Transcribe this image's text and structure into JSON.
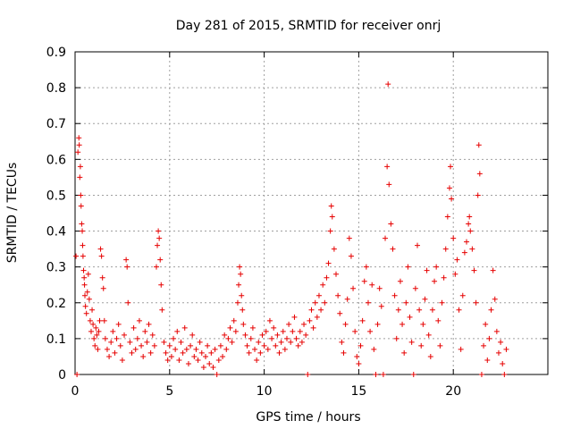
{
  "chart_data": {
    "type": "scatter",
    "title": "Day 281 of 2015, SRMTID for receiver onrj",
    "xlabel": "GPS time / hours",
    "ylabel": "SRMTID / TECUs",
    "xlim": [
      0,
      25
    ],
    "ylim": [
      0,
      0.9
    ],
    "xticks": [
      0,
      5,
      10,
      15,
      20
    ],
    "yticks": [
      0,
      0.1,
      0.2,
      0.3,
      0.4,
      0.5,
      0.6,
      0.7,
      0.8,
      0.9
    ],
    "xtick_labels": [
      "0",
      "5",
      "10",
      "15",
      "20"
    ],
    "ytick_labels": [
      "0",
      "0.1",
      "0.2",
      "0.3",
      "0.4",
      "0.5",
      "0.6",
      "0.7",
      "0.8",
      "0.9"
    ],
    "grid": true,
    "marker": "+",
    "color": "#e60000",
    "series": [
      {
        "name": "SRMTID",
        "points": [
          [
            0.05,
            0.33
          ],
          [
            0.1,
            0.0
          ],
          [
            0.15,
            0.62
          ],
          [
            0.2,
            0.66
          ],
          [
            0.22,
            0.64
          ],
          [
            0.25,
            0.55
          ],
          [
            0.28,
            0.58
          ],
          [
            0.3,
            0.5
          ],
          [
            0.32,
            0.47
          ],
          [
            0.35,
            0.42
          ],
          [
            0.38,
            0.4
          ],
          [
            0.4,
            0.36
          ],
          [
            0.42,
            0.33
          ],
          [
            0.45,
            0.29
          ],
          [
            0.48,
            0.27
          ],
          [
            0.5,
            0.25
          ],
          [
            0.52,
            0.22
          ],
          [
            0.55,
            0.19
          ],
          [
            0.6,
            0.17
          ],
          [
            0.65,
            0.23
          ],
          [
            0.7,
            0.28
          ],
          [
            0.75,
            0.21
          ],
          [
            0.8,
            0.15
          ],
          [
            0.85,
            0.12
          ],
          [
            0.9,
            0.18
          ],
          [
            0.95,
            0.14
          ],
          [
            1.0,
            0.1
          ],
          [
            1.05,
            0.08
          ],
          [
            1.1,
            0.13
          ],
          [
            1.15,
            0.11
          ],
          [
            1.2,
            0.07
          ],
          [
            1.25,
            0.12
          ],
          [
            1.3,
            0.15
          ],
          [
            1.35,
            0.35
          ],
          [
            1.4,
            0.33
          ],
          [
            1.45,
            0.27
          ],
          [
            1.5,
            0.24
          ],
          [
            1.55,
            0.15
          ],
          [
            1.6,
            0.1
          ],
          [
            1.7,
            0.07
          ],
          [
            1.8,
            0.05
          ],
          [
            1.9,
            0.09
          ],
          [
            2.0,
            0.12
          ],
          [
            2.1,
            0.06
          ],
          [
            2.2,
            0.1
          ],
          [
            2.3,
            0.14
          ],
          [
            2.4,
            0.08
          ],
          [
            2.5,
            0.04
          ],
          [
            2.6,
            0.11
          ],
          [
            2.7,
            0.32
          ],
          [
            2.75,
            0.3
          ],
          [
            2.8,
            0.2
          ],
          [
            2.9,
            0.09
          ],
          [
            3.0,
            0.06
          ],
          [
            3.1,
            0.13
          ],
          [
            3.2,
            0.07
          ],
          [
            3.3,
            0.1
          ],
          [
            3.4,
            0.15
          ],
          [
            3.5,
            0.08
          ],
          [
            3.6,
            0.05
          ],
          [
            3.7,
            0.12
          ],
          [
            3.8,
            0.09
          ],
          [
            3.9,
            0.14
          ],
          [
            4.0,
            0.06
          ],
          [
            4.1,
            0.11
          ],
          [
            4.2,
            0.08
          ],
          [
            4.3,
            0.3
          ],
          [
            4.35,
            0.36
          ],
          [
            4.4,
            0.4
          ],
          [
            4.45,
            0.38
          ],
          [
            4.5,
            0.32
          ],
          [
            4.55,
            0.25
          ],
          [
            4.6,
            0.18
          ],
          [
            4.7,
            0.09
          ],
          [
            4.8,
            0.06
          ],
          [
            4.9,
            0.04
          ],
          [
            5.0,
            0.08
          ],
          [
            5.1,
            0.05
          ],
          [
            5.2,
            0.1
          ],
          [
            5.3,
            0.07
          ],
          [
            5.4,
            0.12
          ],
          [
            5.5,
            0.04
          ],
          [
            5.6,
            0.09
          ],
          [
            5.7,
            0.06
          ],
          [
            5.8,
            0.13
          ],
          [
            5.9,
            0.07
          ],
          [
            6.0,
            0.03
          ],
          [
            6.1,
            0.08
          ],
          [
            6.2,
            0.11
          ],
          [
            6.3,
            0.05
          ],
          [
            6.4,
            0.07
          ],
          [
            6.5,
            0.04
          ],
          [
            6.6,
            0.09
          ],
          [
            6.7,
            0.06
          ],
          [
            6.8,
            0.02
          ],
          [
            6.9,
            0.05
          ],
          [
            7.0,
            0.08
          ],
          [
            7.1,
            0.03
          ],
          [
            7.2,
            0.06
          ],
          [
            7.3,
            0.02
          ],
          [
            7.4,
            0.07
          ],
          [
            7.5,
            0.0
          ],
          [
            7.6,
            0.04
          ],
          [
            7.7,
            0.08
          ],
          [
            7.8,
            0.05
          ],
          [
            7.9,
            0.11
          ],
          [
            8.0,
            0.07
          ],
          [
            8.1,
            0.1
          ],
          [
            8.2,
            0.13
          ],
          [
            8.3,
            0.09
          ],
          [
            8.4,
            0.15
          ],
          [
            8.5,
            0.12
          ],
          [
            8.6,
            0.2
          ],
          [
            8.65,
            0.25
          ],
          [
            8.7,
            0.3
          ],
          [
            8.75,
            0.28
          ],
          [
            8.8,
            0.22
          ],
          [
            8.85,
            0.18
          ],
          [
            8.9,
            0.14
          ],
          [
            9.0,
            0.11
          ],
          [
            9.1,
            0.08
          ],
          [
            9.2,
            0.06
          ],
          [
            9.3,
            0.1
          ],
          [
            9.4,
            0.13
          ],
          [
            9.5,
            0.07
          ],
          [
            9.6,
            0.04
          ],
          [
            9.7,
            0.09
          ],
          [
            9.8,
            0.06
          ],
          [
            9.9,
            0.11
          ],
          [
            10.0,
            0.08
          ],
          [
            10.1,
            0.12
          ],
          [
            10.2,
            0.07
          ],
          [
            10.3,
            0.15
          ],
          [
            10.4,
            0.1
          ],
          [
            10.5,
            0.13
          ],
          [
            10.6,
            0.08
          ],
          [
            10.7,
            0.11
          ],
          [
            10.8,
            0.06
          ],
          [
            10.9,
            0.09
          ],
          [
            11.0,
            0.12
          ],
          [
            11.1,
            0.07
          ],
          [
            11.2,
            0.1
          ],
          [
            11.3,
            0.14
          ],
          [
            11.4,
            0.09
          ],
          [
            11.5,
            0.12
          ],
          [
            11.6,
            0.16
          ],
          [
            11.7,
            0.1
          ],
          [
            11.8,
            0.08
          ],
          [
            11.9,
            0.12
          ],
          [
            12.0,
            0.09
          ],
          [
            12.1,
            0.14
          ],
          [
            12.2,
            0.11
          ],
          [
            12.3,
            0.0
          ],
          [
            12.4,
            0.15
          ],
          [
            12.5,
            0.18
          ],
          [
            12.6,
            0.13
          ],
          [
            12.7,
            0.2
          ],
          [
            12.8,
            0.16
          ],
          [
            12.9,
            0.22
          ],
          [
            13.0,
            0.18
          ],
          [
            13.1,
            0.25
          ],
          [
            13.2,
            0.2
          ],
          [
            13.3,
            0.27
          ],
          [
            13.4,
            0.31
          ],
          [
            13.5,
            0.4
          ],
          [
            13.55,
            0.47
          ],
          [
            13.6,
            0.44
          ],
          [
            13.7,
            0.35
          ],
          [
            13.8,
            0.28
          ],
          [
            13.9,
            0.22
          ],
          [
            14.0,
            0.17
          ],
          [
            14.1,
            0.09
          ],
          [
            14.2,
            0.06
          ],
          [
            14.3,
            0.14
          ],
          [
            14.4,
            0.21
          ],
          [
            14.5,
            0.38
          ],
          [
            14.6,
            0.33
          ],
          [
            14.7,
            0.24
          ],
          [
            14.8,
            0.12
          ],
          [
            14.9,
            0.05
          ],
          [
            15.0,
            0.03
          ],
          [
            15.1,
            0.08
          ],
          [
            15.2,
            0.15
          ],
          [
            15.3,
            0.26
          ],
          [
            15.4,
            0.3
          ],
          [
            15.5,
            0.2
          ],
          [
            15.6,
            0.12
          ],
          [
            15.7,
            0.25
          ],
          [
            15.8,
            0.07
          ],
          [
            15.9,
            0.0
          ],
          [
            16.0,
            0.14
          ],
          [
            16.1,
            0.24
          ],
          [
            16.2,
            0.19
          ],
          [
            16.3,
            0.0
          ],
          [
            16.4,
            0.38
          ],
          [
            16.5,
            0.58
          ],
          [
            16.55,
            0.81
          ],
          [
            16.6,
            0.53
          ],
          [
            16.7,
            0.42
          ],
          [
            16.8,
            0.35
          ],
          [
            16.9,
            0.22
          ],
          [
            17.0,
            0.1
          ],
          [
            17.1,
            0.18
          ],
          [
            17.2,
            0.26
          ],
          [
            17.3,
            0.14
          ],
          [
            17.4,
            0.06
          ],
          [
            17.5,
            0.2
          ],
          [
            17.6,
            0.3
          ],
          [
            17.7,
            0.16
          ],
          [
            17.8,
            0.09
          ],
          [
            17.9,
            0.0
          ],
          [
            18.0,
            0.24
          ],
          [
            18.1,
            0.36
          ],
          [
            18.2,
            0.18
          ],
          [
            18.3,
            0.08
          ],
          [
            18.4,
            0.14
          ],
          [
            18.5,
            0.21
          ],
          [
            18.6,
            0.29
          ],
          [
            18.7,
            0.11
          ],
          [
            18.8,
            0.05
          ],
          [
            18.9,
            0.18
          ],
          [
            19.0,
            0.26
          ],
          [
            19.1,
            0.3
          ],
          [
            19.2,
            0.15
          ],
          [
            19.3,
            0.08
          ],
          [
            19.4,
            0.2
          ],
          [
            19.5,
            0.27
          ],
          [
            19.6,
            0.35
          ],
          [
            19.7,
            0.44
          ],
          [
            19.8,
            0.52
          ],
          [
            19.85,
            0.58
          ],
          [
            19.9,
            0.49
          ],
          [
            20.0,
            0.38
          ],
          [
            20.1,
            0.28
          ],
          [
            20.2,
            0.32
          ],
          [
            20.3,
            0.18
          ],
          [
            20.4,
            0.07
          ],
          [
            20.5,
            0.22
          ],
          [
            20.6,
            0.34
          ],
          [
            20.7,
            0.37
          ],
          [
            20.8,
            0.42
          ],
          [
            20.85,
            0.44
          ],
          [
            20.9,
            0.4
          ],
          [
            21.0,
            0.35
          ],
          [
            21.1,
            0.29
          ],
          [
            21.2,
            0.2
          ],
          [
            21.3,
            0.5
          ],
          [
            21.35,
            0.64
          ],
          [
            21.4,
            0.56
          ],
          [
            21.5,
            0.0
          ],
          [
            21.6,
            0.08
          ],
          [
            21.7,
            0.14
          ],
          [
            21.8,
            0.04
          ],
          [
            21.9,
            0.1
          ],
          [
            22.0,
            0.18
          ],
          [
            22.1,
            0.29
          ],
          [
            22.2,
            0.21
          ],
          [
            22.3,
            0.12
          ],
          [
            22.4,
            0.06
          ],
          [
            22.5,
            0.09
          ],
          [
            22.6,
            0.03
          ],
          [
            22.7,
            0.0
          ],
          [
            22.8,
            0.07
          ]
        ]
      }
    ]
  }
}
